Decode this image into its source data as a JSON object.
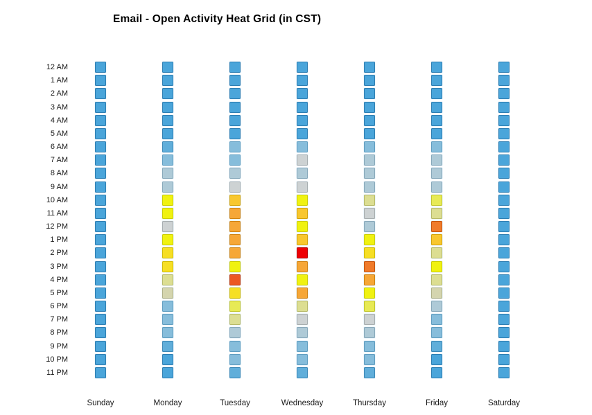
{
  "title": "Email - Open Activity Heat Grid (in CST)",
  "colors": {
    "background": "#ffffff",
    "title_text": "#000000",
    "axis_text": "#1a1a1a",
    "low_activity": "#4aa5da",
    "mid_activity": "#f0f211",
    "high_activity": "#ee0004"
  },
  "chart_data": {
    "type": "heatmap",
    "title": "Email - Open Activity Heat Grid (in CST)",
    "x_categories": [
      "Sunday",
      "Monday",
      "Tuesday",
      "Wednesday",
      "Thursday",
      "Friday",
      "Saturday"
    ],
    "y_categories": [
      "12 AM",
      "1 AM",
      "2 AM",
      "3 AM",
      "4 AM",
      "5 AM",
      "6 AM",
      "7 AM",
      "8 AM",
      "9 AM",
      "10 AM",
      "11 AM",
      "12 PM",
      "1 PM",
      "2 PM",
      "3 PM",
      "4 PM",
      "5 PM",
      "6 PM",
      "7 PM",
      "8 PM",
      "9 PM",
      "10 PM",
      "11 PM"
    ],
    "legend": "none",
    "grid": "off",
    "value_scale": "intensity index 0-15: 0 = lowest open activity (blue), 8 = medium (yellow), 15 = highest (red)",
    "palette": [
      {
        "fill": "#4aa5da",
        "stroke": "#2e7eb2"
      },
      {
        "fill": "#60aeda",
        "stroke": "#3c88b6"
      },
      {
        "fill": "#86bddb",
        "stroke": "#5f9dc0"
      },
      {
        "fill": "#aecad7",
        "stroke": "#87a8ba"
      },
      {
        "fill": "#cdd2d3",
        "stroke": "#a7adaf"
      },
      {
        "fill": "#d4d5ae",
        "stroke": "#afb087"
      },
      {
        "fill": "#dcde92",
        "stroke": "#b7b968"
      },
      {
        "fill": "#e7ea55",
        "stroke": "#c2c52d"
      },
      {
        "fill": "#f0f211",
        "stroke": "#cbcd00"
      },
      {
        "fill": "#f6df24",
        "stroke": "#d1ba00"
      },
      {
        "fill": "#f8c72e",
        "stroke": "#d3a208"
      },
      {
        "fill": "#f6a737",
        "stroke": "#d08211"
      },
      {
        "fill": "#f49630",
        "stroke": "#ce710b"
      },
      {
        "fill": "#f07b2a",
        "stroke": "#c5540e"
      },
      {
        "fill": "#ec5722",
        "stroke": "#be3305"
      },
      {
        "fill": "#ee0004",
        "stroke": "#b50000"
      }
    ],
    "series": [
      {
        "name": "Sunday",
        "levels": [
          0,
          0,
          0,
          0,
          0,
          0,
          0,
          0,
          0,
          0,
          0,
          0,
          0,
          0,
          0,
          0,
          0,
          0,
          0,
          0,
          0,
          0,
          0,
          0
        ]
      },
      {
        "name": "Monday",
        "levels": [
          0,
          0,
          0,
          0,
          0,
          0,
          1,
          2,
          3,
          3,
          8,
          8,
          4,
          8,
          9,
          9,
          6,
          5,
          2,
          2,
          2,
          1,
          0,
          0
        ]
      },
      {
        "name": "Tuesday",
        "levels": [
          0,
          0,
          0,
          0,
          0,
          0,
          2,
          2,
          3,
          4,
          10,
          11,
          11,
          11,
          11,
          8,
          14,
          9,
          7,
          6,
          3,
          2,
          2,
          1
        ]
      },
      {
        "name": "Wednesday",
        "levels": [
          0,
          0,
          0,
          0,
          0,
          0,
          2,
          4,
          3,
          4,
          8,
          10,
          8,
          10,
          15,
          11,
          8,
          11,
          6,
          4,
          3,
          2,
          2,
          1
        ]
      },
      {
        "name": "Thursday",
        "levels": [
          0,
          0,
          0,
          0,
          0,
          0,
          2,
          3,
          3,
          3,
          6,
          4,
          3,
          8,
          9,
          13,
          11,
          8,
          7,
          4,
          3,
          2,
          2,
          1
        ]
      },
      {
        "name": "Friday",
        "levels": [
          0,
          0,
          0,
          0,
          0,
          0,
          2,
          3,
          3,
          3,
          7,
          6,
          13,
          10,
          6,
          8,
          6,
          5,
          3,
          2,
          2,
          1,
          0,
          0
        ]
      },
      {
        "name": "Saturday",
        "levels": [
          0,
          0,
          0,
          0,
          0,
          0,
          0,
          0,
          0,
          0,
          0,
          0,
          0,
          0,
          0,
          0,
          0,
          0,
          0,
          0,
          0,
          0,
          0,
          0
        ]
      }
    ]
  }
}
